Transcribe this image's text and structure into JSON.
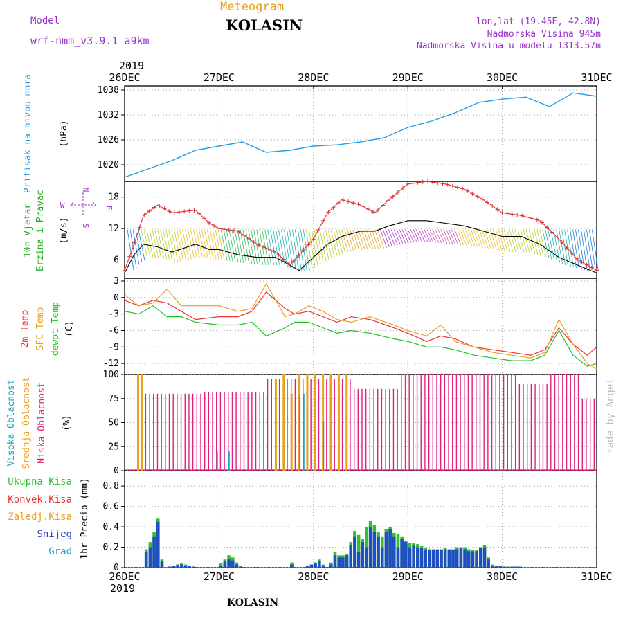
{
  "header": {
    "model_label": "Model",
    "model_name": "wrf-nmm_v3.9.1  a9km",
    "kind": "Meteogram",
    "station": "KOLASIN",
    "lonlat": "lon,lat (19.45E, 42.8N)",
    "elevation": "Nadmorska Visina 945m",
    "model_elevation": "Nadmorska Visina u modelu 1313.57m",
    "footer_station": "KOLASIN",
    "credit": "made by Angel"
  },
  "colors": {
    "pressure": "#1ea0e6",
    "temp2m": "#ee3333",
    "sfc_temp": "#e8a020",
    "dewpoint": "#20c020",
    "low_cloud": "#e0207a",
    "mid_cloud": "#e8a020",
    "high_cloud": "#20a0c0",
    "precip_total": "#30c030",
    "snow": "#2050c0",
    "wind_speed": "#dd3333",
    "wind_gust_max": "#000000",
    "purple": "#9933cc"
  },
  "chart_data": [
    {
      "type": "line",
      "id": "pressure",
      "ylabel": "Pritisak na nivou mora",
      "unit": "(hPa)",
      "ylim": [
        1016,
        1039
      ],
      "yticks": [
        1020,
        1026,
        1032,
        1038
      ],
      "x_days": [
        0,
        0.25,
        0.5,
        0.75,
        1.0,
        1.25,
        1.5,
        1.75,
        2.0,
        2.25,
        2.5,
        2.75,
        3.0,
        3.25,
        3.5,
        3.75,
        4.0,
        4.25,
        4.5,
        4.75,
        5.0
      ],
      "series": [
        {
          "values": [
            1017.0,
            1019.0,
            1021.0,
            1023.5,
            1024.5,
            1025.5,
            1023.0,
            1023.5,
            1024.5,
            1024.8,
            1025.5,
            1026.5,
            1029.0,
            1030.5,
            1032.5,
            1035.0,
            1035.8,
            1036.3,
            1034.0,
            1037.3,
            1036.5
          ]
        }
      ]
    },
    {
      "type": "line",
      "id": "wind",
      "ylabel": "10m Vjetar Brzina i Pravac",
      "unit": "(m/s)",
      "compass": [
        "N",
        "W",
        "E",
        "S"
      ],
      "ylim": [
        2.5,
        21
      ],
      "yticks": [
        6,
        12,
        18
      ],
      "x_days": [
        0,
        0.1,
        0.2,
        0.35,
        0.5,
        0.75,
        0.9,
        1.0,
        1.2,
        1.4,
        1.6,
        1.75,
        1.85,
        2.0,
        2.15,
        2.3,
        2.5,
        2.65,
        2.8,
        3.0,
        3.2,
        3.4,
        3.6,
        3.8,
        4.0,
        4.2,
        4.4,
        4.6,
        4.8,
        5.0
      ],
      "series": [
        {
          "name": "speed",
          "values": [
            4,
            9,
            14.5,
            16.5,
            15,
            15.5,
            13,
            12,
            11.5,
            9,
            7.5,
            5,
            7,
            10,
            15,
            17.5,
            16.5,
            15,
            17.5,
            20.5,
            21,
            20.5,
            19.5,
            17.5,
            15,
            14.5,
            13.5,
            10,
            6,
            4
          ]
        },
        {
          "name": "max",
          "values": [
            3.5,
            7,
            9,
            8.5,
            7.5,
            9,
            8,
            8,
            7,
            6.5,
            6.5,
            5,
            4,
            6.5,
            9,
            10.5,
            11.5,
            11.5,
            12.5,
            13.5,
            13.5,
            13,
            12.5,
            11.5,
            10.5,
            10.5,
            9,
            6.5,
            5,
            3.5
          ]
        }
      ]
    },
    {
      "type": "line",
      "id": "temperature",
      "ylabel": [
        "2m Temp",
        "SFC Temp",
        "dewpt Temp"
      ],
      "unit": "(C)",
      "ylim": [
        -14,
        3.5
      ],
      "yticks": [
        3,
        0,
        -3,
        -6,
        -9,
        -12
      ],
      "x_days": [
        0,
        0.15,
        0.3,
        0.45,
        0.6,
        0.75,
        1.0,
        1.2,
        1.35,
        1.5,
        1.7,
        1.8,
        1.95,
        2.1,
        2.25,
        2.4,
        2.6,
        2.85,
        3.0,
        3.2,
        3.35,
        3.5,
        3.7,
        3.9,
        4.1,
        4.3,
        4.45,
        4.6,
        4.75,
        4.9,
        5.0
      ],
      "series": [
        {
          "name": "2m Temp",
          "values": [
            -0.5,
            -1.5,
            -0.5,
            -1.0,
            -2.5,
            -4.0,
            -3.5,
            -3.5,
            -2.5,
            1.0,
            -2.0,
            -3.0,
            -2.5,
            -3.5,
            -4.5,
            -3.5,
            -4.0,
            -5.5,
            -6.5,
            -8.0,
            -7.0,
            -7.5,
            -9.0,
            -9.5,
            -10.0,
            -10.5,
            -9.5,
            -5.5,
            -8.5,
            -10.5,
            -9.0
          ]
        },
        {
          "name": "SFC Temp",
          "values": [
            0.5,
            -1.5,
            -1.0,
            1.5,
            -1.5,
            -1.5,
            -1.5,
            -2.5,
            -2.0,
            2.5,
            -3.5,
            -3.0,
            -1.5,
            -2.5,
            -4.0,
            -4.5,
            -3.5,
            -5.0,
            -6.0,
            -7.0,
            -5.0,
            -8.0,
            -9.0,
            -10.0,
            -10.5,
            -11.0,
            -10.0,
            -4.0,
            -8.5,
            -12.0,
            -13.0
          ]
        },
        {
          "name": "dewpt Temp",
          "values": [
            -2.5,
            -3.0,
            -1.5,
            -3.5,
            -3.5,
            -4.5,
            -5.0,
            -5.0,
            -4.5,
            -7.0,
            -5.5,
            -4.5,
            -4.5,
            -5.5,
            -6.5,
            -6.0,
            -6.5,
            -7.5,
            -8.0,
            -9.0,
            -9.0,
            -9.5,
            -10.5,
            -11.0,
            -11.5,
            -11.5,
            -10.5,
            -6.0,
            -10.5,
            -12.5,
            -12.0
          ]
        }
      ]
    },
    {
      "type": "bar",
      "id": "cloud",
      "ylabel": [
        "Visoka Oblacnost",
        "Srednja Oblacnost",
        "Niska Oblacnost"
      ],
      "unit": "(%)",
      "ylim": [
        0,
        100
      ],
      "yticks": [
        0,
        25,
        50,
        75,
        100
      ],
      "x_step_hours": 1,
      "low_segments": [
        {
          "from_h": 0,
          "to_h": 3,
          "value": 0
        },
        {
          "from_h": 3,
          "to_h": 20,
          "value": 80
        },
        {
          "from_h": 20,
          "to_h": 36,
          "value": 82
        },
        {
          "from_h": 36,
          "to_h": 58,
          "value": 95
        },
        {
          "from_h": 58,
          "to_h": 70,
          "value": 85
        },
        {
          "from_h": 70,
          "to_h": 100,
          "value": 100
        },
        {
          "from_h": 100,
          "to_h": 108,
          "value": 90
        },
        {
          "from_h": 108,
          "to_h": 116,
          "value": 100
        },
        {
          "from_h": 116,
          "to_h": 120,
          "value": 75
        }
      ],
      "mid_bars": [
        [
          3,
          100
        ],
        [
          4,
          100
        ],
        [
          38,
          95
        ],
        [
          40,
          100
        ],
        [
          42,
          80
        ],
        [
          44,
          100
        ],
        [
          46,
          100
        ],
        [
          48,
          100
        ],
        [
          50,
          100
        ],
        [
          52,
          100
        ],
        [
          54,
          100
        ],
        [
          56,
          100
        ]
      ],
      "high_bars": [
        [
          23,
          20
        ],
        [
          26,
          20
        ],
        [
          44,
          78
        ],
        [
          45,
          80
        ],
        [
          47,
          70
        ],
        [
          50,
          50
        ]
      ]
    },
    {
      "type": "bar",
      "id": "precip",
      "ylabel": "1hr Precip",
      "unit": "(mm)",
      "legend": [
        "Ukupna Kisa",
        "Konvek.Kisa",
        "Zaledj.Kisa",
        "Snijeg",
        "Grad"
      ],
      "ylim": [
        0,
        0.95
      ],
      "yticks": [
        0,
        0.2,
        0.4,
        0.6,
        0.8
      ],
      "x_step_hours": 1,
      "total": [
        0,
        0,
        0,
        0,
        0,
        0.18,
        0.25,
        0.35,
        0.48,
        0.08,
        0,
        0.01,
        0.02,
        0.03,
        0.04,
        0.03,
        0.02,
        0.01,
        0,
        0,
        0,
        0,
        0,
        0,
        0.04,
        0.08,
        0.12,
        0.1,
        0.05,
        0.02,
        0,
        0,
        0,
        0,
        0,
        0,
        0,
        0,
        0,
        0,
        0,
        0,
        0.05,
        0,
        0,
        0,
        0.02,
        0.03,
        0.05,
        0.08,
        0.03,
        0,
        0.05,
        0.15,
        0.12,
        0.12,
        0.13,
        0.25,
        0.36,
        0.32,
        0.28,
        0.4,
        0.46,
        0.42,
        0.35,
        0.3,
        0.38,
        0.4,
        0.34,
        0.33,
        0.3,
        0.26,
        0.24,
        0.24,
        0.23,
        0.21,
        0.19,
        0.18,
        0.18,
        0.18,
        0.18,
        0.19,
        0.18,
        0.18,
        0.2,
        0.2,
        0.2,
        0.18,
        0.17,
        0.17,
        0.2,
        0.22,
        0.1,
        0.03,
        0.02,
        0.02,
        0.01,
        0.01,
        0.01,
        0.01,
        0.01,
        0,
        0,
        0,
        0,
        0,
        0,
        0,
        0,
        0,
        0,
        0,
        0,
        0,
        0,
        0,
        0,
        0,
        0,
        0
      ],
      "snow": [
        0,
        0,
        0,
        0,
        0,
        0.15,
        0.2,
        0.3,
        0.45,
        0.06,
        0,
        0.01,
        0.02,
        0.03,
        0.03,
        0.02,
        0.02,
        0.01,
        0,
        0,
        0,
        0,
        0,
        0,
        0.02,
        0.06,
        0.08,
        0.07,
        0.03,
        0.01,
        0,
        0,
        0,
        0,
        0,
        0,
        0,
        0,
        0,
        0,
        0,
        0,
        0.03,
        0,
        0,
        0,
        0.02,
        0.03,
        0.04,
        0.06,
        0.02,
        0,
        0.03,
        0.12,
        0.1,
        0.1,
        0.12,
        0.22,
        0.3,
        0.15,
        0.25,
        0.2,
        0.4,
        0.35,
        0.3,
        0.2,
        0.35,
        0.38,
        0.3,
        0.2,
        0.28,
        0.25,
        0.2,
        0.22,
        0.2,
        0.19,
        0.17,
        0.17,
        0.17,
        0.17,
        0.17,
        0.18,
        0.17,
        0.17,
        0.18,
        0.19,
        0.18,
        0.16,
        0.16,
        0.16,
        0.19,
        0.2,
        0.08,
        0.02,
        0.02,
        0.02,
        0.01,
        0.01,
        0.01,
        0.01,
        0.01,
        0,
        0,
        0,
        0,
        0,
        0,
        0,
        0,
        0,
        0,
        0,
        0,
        0,
        0,
        0,
        0,
        0,
        0,
        0
      ]
    }
  ],
  "axis": {
    "year": "2019",
    "dates": [
      "26DEC",
      "27DEC",
      "28DEC",
      "29DEC",
      "30DEC",
      "31DEC"
    ]
  }
}
